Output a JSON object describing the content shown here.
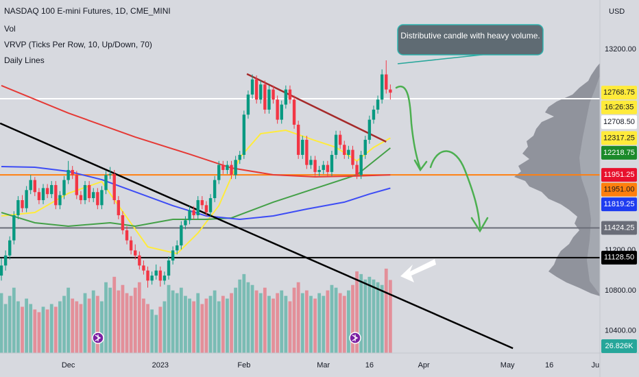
{
  "chart_data": {
    "type": "candlestick",
    "title": "NASDAQ 100 E-mini Futures, 1D, CME_MINI",
    "indicators": [
      "Vol",
      "VRVP (Ticks Per Row, 10, Up/Down, 70)",
      "Daily Lines"
    ],
    "currency": "USD",
    "annotation": "Distributive candle with heavy volume.",
    "up_color": "#089981",
    "down_color": "#f23645",
    "xlim": [
      -0.33,
      143.1
    ],
    "ylim": [
      10180,
      13690
    ],
    "xticks": [
      {
        "value": 16,
        "label": "Dec"
      },
      {
        "value": 38,
        "label": "2023"
      },
      {
        "value": 58,
        "label": "Feb"
      },
      {
        "value": 77,
        "label": "Mar"
      },
      {
        "value": 88,
        "label": "16"
      },
      {
        "value": 101,
        "label": "Apr"
      },
      {
        "value": 121,
        "label": "May"
      },
      {
        "value": 131,
        "label": "16"
      },
      {
        "value": 142,
        "label": "Ju"
      }
    ],
    "yticks": [
      {
        "value": 13200,
        "label": "13200.00"
      },
      {
        "value": 11200,
        "label": "11200.00"
      },
      {
        "value": 10800,
        "label": "10800.00"
      },
      {
        "value": 10400,
        "label": "10400.00"
      }
    ],
    "candles": [
      [
        10950,
        11120,
        10900,
        11050
      ],
      [
        11050,
        11200,
        11000,
        11150
      ],
      [
        11150,
        11340,
        11110,
        11300
      ],
      [
        11300,
        11590,
        11260,
        11550
      ],
      [
        11550,
        11740,
        11510,
        11700
      ],
      [
        11700,
        11750,
        11580,
        11620
      ],
      [
        11620,
        11840,
        11580,
        11800
      ],
      [
        11800,
        11950,
        11760,
        11900
      ],
      [
        11900,
        11930,
        11740,
        11780
      ],
      [
        11780,
        11820,
        11660,
        11700
      ],
      [
        11700,
        11860,
        11660,
        11820
      ],
      [
        11820,
        11860,
        11720,
        11760
      ],
      [
        11760,
        11890,
        11720,
        11850
      ],
      [
        11850,
        11890,
        11610,
        11650
      ],
      [
        11650,
        11790,
        11610,
        11750
      ],
      [
        11750,
        11940,
        11710,
        11900
      ],
      [
        11900,
        12090,
        11860,
        12000
      ],
      [
        12000,
        12040,
        11910,
        11950
      ],
      [
        11950,
        11990,
        11710,
        11750
      ],
      [
        11750,
        11790,
        11660,
        11700
      ],
      [
        11700,
        11890,
        11660,
        11850
      ],
      [
        11850,
        11890,
        11680,
        11720
      ],
      [
        11720,
        11820,
        11680,
        11780
      ],
      [
        11780,
        11820,
        11610,
        11650
      ],
      [
        11650,
        11840,
        11610,
        11800
      ],
      [
        11800,
        11990,
        11760,
        11950
      ],
      [
        11950,
        12030,
        11910,
        11960
      ],
      [
        11960,
        12000,
        11660,
        11700
      ],
      [
        11700,
        11740,
        11510,
        11550
      ],
      [
        11550,
        11590,
        11360,
        11400
      ],
      [
        11400,
        11440,
        11260,
        11300
      ],
      [
        11300,
        11340,
        11160,
        11200
      ],
      [
        11200,
        11260,
        11110,
        11150
      ],
      [
        11150,
        11190,
        11010,
        11050
      ],
      [
        11050,
        11100,
        10960,
        11000
      ],
      [
        11000,
        11040,
        10830,
        10900
      ],
      [
        10900,
        10990,
        10860,
        10950
      ],
      [
        10950,
        11060,
        10910,
        11000
      ],
      [
        11000,
        11040,
        10840,
        10900
      ],
      [
        10900,
        10990,
        10860,
        10950
      ],
      [
        10950,
        11140,
        10910,
        11100
      ],
      [
        11100,
        11240,
        11060,
        11200
      ],
      [
        11200,
        11300,
        11160,
        11250
      ],
      [
        11250,
        11490,
        11210,
        11450
      ],
      [
        11450,
        11540,
        11410,
        11500
      ],
      [
        11500,
        11640,
        11460,
        11600
      ],
      [
        11600,
        11640,
        11510,
        11550
      ],
      [
        11550,
        11740,
        11510,
        11700
      ],
      [
        11700,
        11740,
        11610,
        11650
      ],
      [
        11650,
        11690,
        11540,
        11580
      ],
      [
        11580,
        11760,
        11540,
        11720
      ],
      [
        11720,
        11940,
        11680,
        11900
      ],
      [
        11900,
        12090,
        11860,
        12050
      ],
      [
        12050,
        12090,
        11960,
        12000
      ],
      [
        12000,
        12090,
        11960,
        12050
      ],
      [
        12050,
        12090,
        11910,
        11950
      ],
      [
        11950,
        12140,
        11910,
        12100
      ],
      [
        12100,
        12190,
        12060,
        12150
      ],
      [
        12150,
        12590,
        12110,
        12550
      ],
      [
        12550,
        12790,
        12510,
        12750
      ],
      [
        12750,
        12950,
        12710,
        12900
      ],
      [
        12900,
        12940,
        12660,
        12700
      ],
      [
        12700,
        12890,
        12660,
        12850
      ],
      [
        12850,
        12890,
        12560,
        12600
      ],
      [
        12600,
        12840,
        12560,
        12800
      ],
      [
        12800,
        12840,
        12660,
        12700
      ],
      [
        12700,
        12740,
        12460,
        12500
      ],
      [
        12500,
        12690,
        12460,
        12650
      ],
      [
        12650,
        12840,
        12610,
        12800
      ],
      [
        12800,
        12840,
        12660,
        12700
      ],
      [
        12700,
        12740,
        12410,
        12450
      ],
      [
        12450,
        12490,
        12110,
        12150
      ],
      [
        12150,
        12340,
        12110,
        12300
      ],
      [
        12300,
        12340,
        12010,
        12050
      ],
      [
        12050,
        12140,
        12010,
        12100
      ],
      [
        12100,
        12140,
        11940,
        11980
      ],
      [
        11980,
        12040,
        11940,
        12000
      ],
      [
        12000,
        12090,
        11960,
        12050
      ],
      [
        12050,
        12090,
        11940,
        11980
      ],
      [
        11980,
        12190,
        11940,
        12150
      ],
      [
        12150,
        12390,
        12110,
        12350
      ],
      [
        12350,
        12390,
        12210,
        12250
      ],
      [
        12250,
        12290,
        12110,
        12150
      ],
      [
        12150,
        12240,
        12110,
        12200
      ],
      [
        12200,
        12240,
        12010,
        12050
      ],
      [
        12050,
        12090,
        11910,
        11950
      ],
      [
        11950,
        12190,
        11910,
        12150
      ],
      [
        12150,
        12340,
        12110,
        12300
      ],
      [
        12300,
        12540,
        12260,
        12500
      ],
      [
        12500,
        12640,
        12460,
        12600
      ],
      [
        12600,
        12740,
        12560,
        12700
      ],
      [
        12700,
        13000,
        12660,
        12950
      ],
      [
        12950,
        13090,
        12760,
        12800
      ],
      [
        12800,
        12850,
        12700,
        12768.75
      ]
    ],
    "volume": {
      "vlim": [
        0,
        34000
      ],
      "values": [
        22000,
        18000,
        21000,
        24000,
        19000,
        17000,
        20000,
        18000,
        16000,
        15000,
        17000,
        16000,
        18000,
        17000,
        19000,
        21000,
        24000,
        20000,
        19000,
        18000,
        22000,
        20000,
        23000,
        21000,
        19000,
        26000,
        24000,
        28000,
        23000,
        25000,
        22000,
        21000,
        24000,
        26000,
        20000,
        18000,
        16000,
        14000,
        17000,
        19000,
        25000,
        23000,
        22000,
        24000,
        21000,
        20000,
        19000,
        22000,
        18000,
        20000,
        21000,
        23000,
        19000,
        21000,
        20000,
        22000,
        24000,
        27000,
        29000,
        26000,
        25000,
        23000,
        22000,
        24000,
        21000,
        20000,
        22000,
        23000,
        21000,
        19000,
        24000,
        26000,
        22000,
        23000,
        21000,
        20000,
        22000,
        21000,
        23000,
        25000,
        24000,
        22000,
        21000,
        23000,
        25000,
        30000,
        29000,
        27000,
        28000,
        27000,
        26000,
        25000,
        31000,
        26826
      ],
      "label": "26.826K",
      "color": "#26a69a"
    },
    "series": [
      {
        "color": "#ffeb3b",
        "x": [
          0,
          8,
          16,
          24,
          28,
          35,
          42,
          47,
          52,
          57,
          62,
          68,
          75,
          80,
          85,
          89,
          93
        ],
        "values": [
          11543,
          11577,
          11768,
          11884,
          11645,
          11236,
          11168,
          11373,
          11645,
          12123,
          12361,
          12395,
          12293,
          12225,
          12089,
          12225,
          12317.25
        ]
      },
      {
        "color": "#43a047",
        "x": [
          0,
          8,
          16,
          26,
          32,
          41,
          49,
          55,
          65,
          75,
          85,
          93
        ],
        "values": [
          11577,
          11475,
          11441,
          11475,
          11441,
          11509,
          11509,
          11523,
          11680,
          11816,
          11952,
          12218.75
        ]
      },
      {
        "color": "#e53935",
        "x": [
          0,
          16,
          32,
          45,
          55,
          65,
          75,
          85,
          93
        ],
        "values": [
          12839,
          12566,
          12327,
          12157,
          12020,
          11952,
          11932,
          11940,
          11951.25
        ]
      },
      {
        "color": "#3d4cf5",
        "x": [
          0,
          8,
          16,
          24,
          32,
          41,
          49,
          57,
          65,
          73,
          82,
          88,
          93
        ],
        "values": [
          12034,
          12027,
          11986,
          11904,
          11782,
          11645,
          11543,
          11509,
          11543,
          11611,
          11680,
          11761,
          11819.25
        ]
      }
    ],
    "trendlines": [
      {
        "color": "#000000",
        "x": [
          -0.3,
          122.3
        ],
        "values": [
          12464,
          10227
        ]
      },
      {
        "color": "#a52a2a",
        "x": [
          58.7,
          92
        ],
        "values": [
          12955,
          12280
        ]
      }
    ],
    "price_tags": [
      {
        "value": 12768.75,
        "label": "12768.75",
        "color": "#ffeb3b",
        "text_color": "#131722"
      },
      {
        "label": "16:26:35",
        "color": "#ffeb3b",
        "text_color": "#131722"
      },
      {
        "value": 12708.5,
        "label": "12708.50",
        "color": "#ffffff",
        "text_color": "#131722",
        "line_color": "#ffffff"
      },
      {
        "value": 12317.25,
        "label": "12317.25",
        "color": "#ffeb3b",
        "text_color": "#131722"
      },
      {
        "value": 12218.75,
        "label": "12218.75",
        "color": "#1b8a2a",
        "text_color": "#ffffff"
      },
      {
        "value": 11951.25,
        "label": "11951.25",
        "color": "#e8112d",
        "text_color": "#ffffff"
      },
      {
        "value": 11951,
        "label": "11951.00",
        "color": "#ff7f0e",
        "text_color": "#131722",
        "line_color": "#ff7f0e"
      },
      {
        "value": 11819.25,
        "label": "11819.25",
        "color": "#1e3cf0",
        "text_color": "#ffffff"
      },
      {
        "value": 11424.25,
        "label": "11424.25",
        "color": "#6a6d78",
        "text_color": "#ffffff",
        "line_color": "#6a6d78"
      },
      {
        "value": 11128.5,
        "label": "11128.50",
        "color": "#000000",
        "text_color": "#ffffff",
        "line_color": "#000000"
      }
    ]
  }
}
